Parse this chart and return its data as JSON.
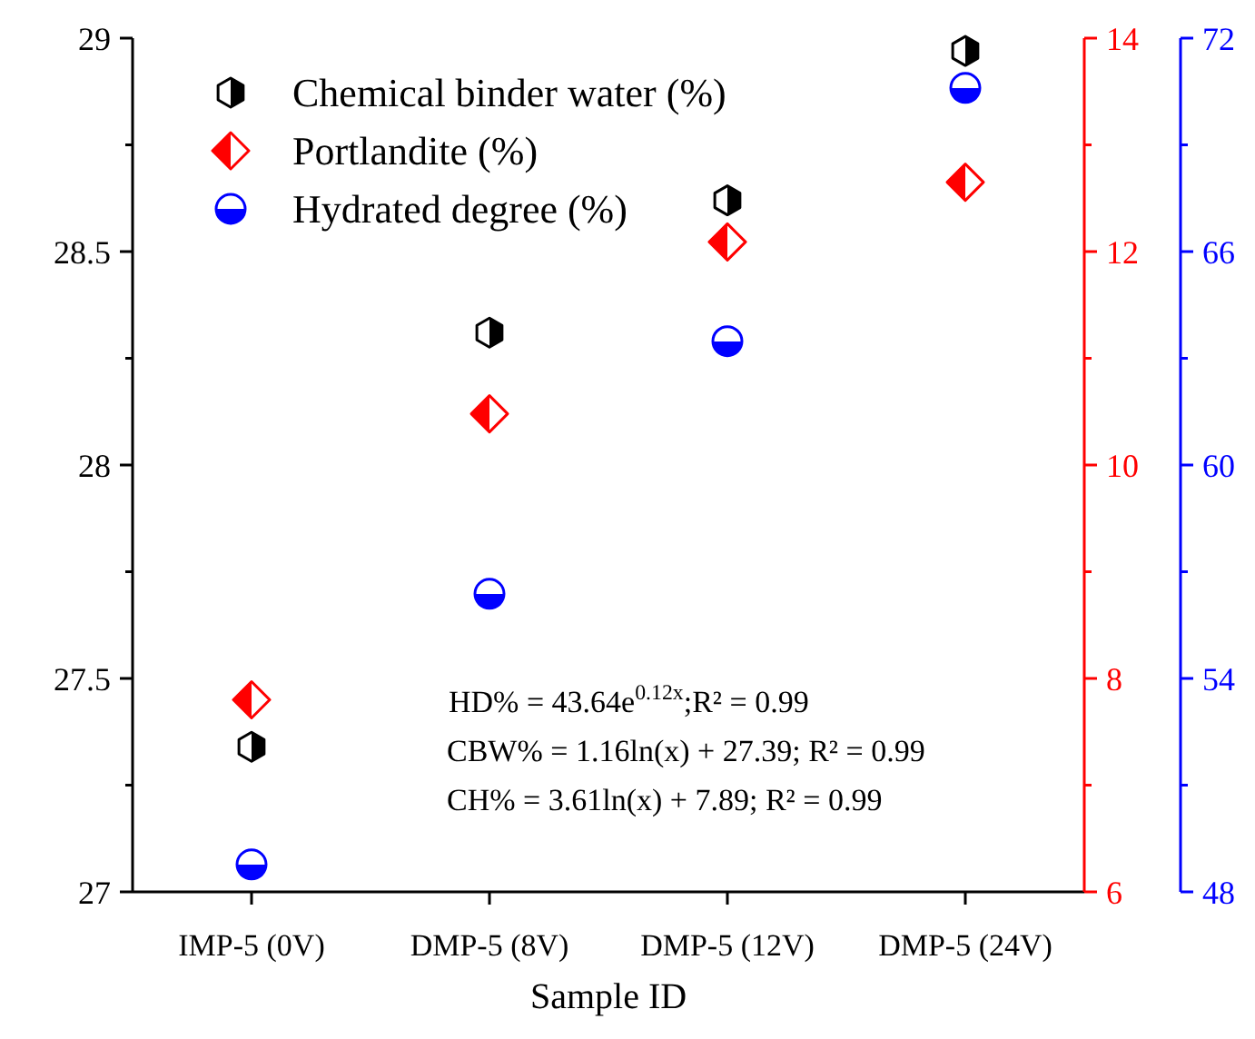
{
  "chart_data": {
    "type": "scatter",
    "categories": [
      "IMP-5 (0V)",
      "DMP-5 (8V)",
      "DMP-5 (12V)",
      "DMP-5 (24V)"
    ],
    "xlabel": "Sample ID",
    "series": [
      {
        "name": "Chemical binder water (%)",
        "color": "#000000",
        "values": [
          27.34,
          28.31,
          28.62,
          28.97
        ]
      },
      {
        "name": "Portlandite (%)",
        "color": "#ff0000",
        "marker": "diamond",
        "axis": "y2",
        "values": [
          7.8,
          10.48,
          12.09,
          12.65
        ]
      },
      {
        "name": "Hydrated degree (%)",
        "color": "#0000ff",
        "marker": "circle",
        "axis": "y3",
        "values": [
          48.77,
          56.38,
          63.48,
          70.6
        ]
      }
    ],
    "ylim": [
      27,
      29
    ],
    "yticks": [
      27,
      {
        "value": 27.25,
        "label": null
      },
      27.5,
      {
        "value": 27.75,
        "label": null
      },
      28,
      {
        "value": 28.25,
        "label": null
      },
      28.5,
      {
        "value": 28.75,
        "label": null
      },
      29
    ],
    "y2lim": [
      6,
      14
    ],
    "y2ticks": [
      6,
      {
        "value": 7,
        "label": null
      },
      8,
      {
        "value": 9,
        "label": null
      },
      10,
      {
        "value": 11,
        "label": null
      },
      12,
      {
        "value": 13,
        "label": null
      },
      14
    ],
    "y3lim": [
      48,
      72
    ],
    "y3ticks": [
      48,
      {
        "value": 51,
        "label": null
      },
      54,
      {
        "value": 57,
        "label": null
      },
      60,
      {
        "value": 63,
        "label": null
      },
      66,
      {
        "value": 69,
        "label": null
      },
      72
    ],
    "legend": "top left",
    "grid": false,
    "annotations": [
      "HD% = 43.64e$^{0.12x}$;R² = 0.99",
      "CBW% = 1.16ln(x) + 27.39; R² = 0.99",
      "CH% = 3.61ln(x) + 7.89; R² = 0.99"
    ]
  }
}
